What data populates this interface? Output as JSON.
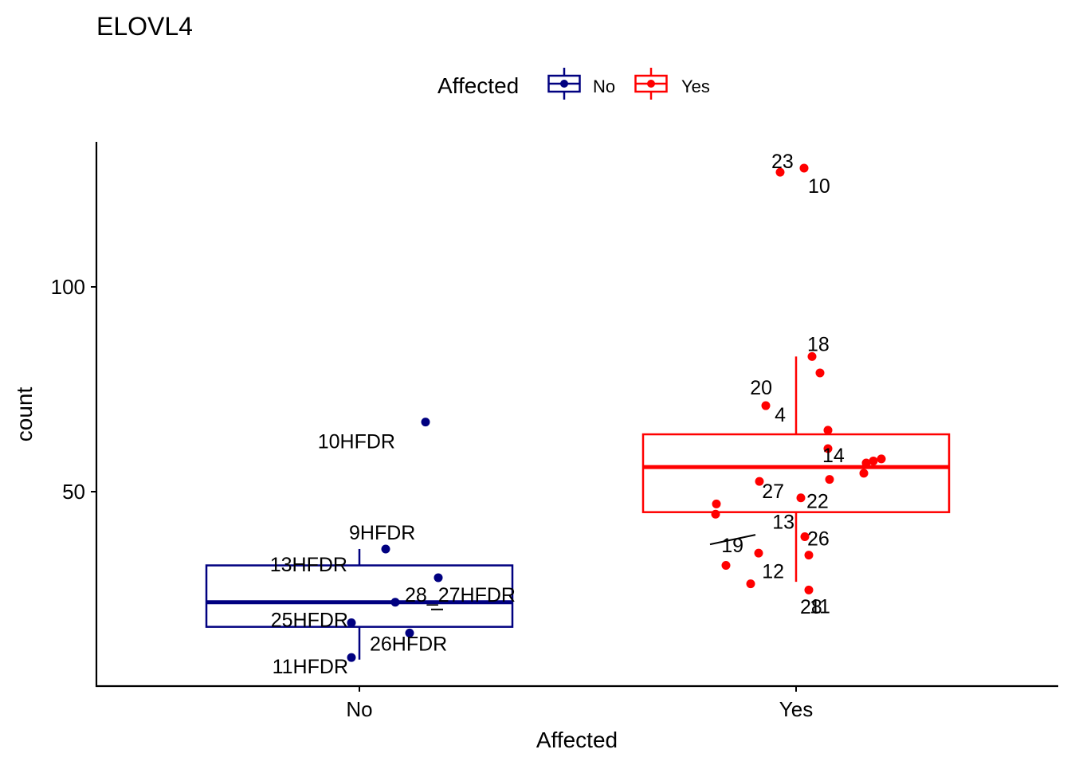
{
  "chart_data": {
    "type": "boxplot",
    "title": "ELOVL4",
    "xlabel": "Affected",
    "ylabel": "count",
    "categories": [
      "No",
      "Yes"
    ],
    "y_ticks": [
      50,
      100
    ],
    "ylim": [
      3,
      136
    ],
    "legend": {
      "title": "Affected",
      "position": "top",
      "entries": [
        {
          "label": "No",
          "color": "#000080"
        },
        {
          "label": "Yes",
          "color": "#FF0000"
        }
      ]
    },
    "grid": false,
    "boxes": [
      {
        "category": "No",
        "color": "#000080",
        "whisker_low": 9,
        "q1": 17,
        "median": 23,
        "q3": 32,
        "whisker_high": 36
      },
      {
        "category": "Yes",
        "color": "#FF0000",
        "whisker_low": 28,
        "q1": 45,
        "median": 56,
        "q3": 64,
        "whisker_high": 83
      }
    ],
    "series": [
      {
        "name": "No",
        "color": "#000080",
        "points": [
          {
            "label": "10HFDR",
            "y": 67
          },
          {
            "label": "9HFDR",
            "y": 36
          },
          {
            "label": "13HFDR",
            "y": 29
          },
          {
            "label": "28_27HFDR",
            "y": 23
          },
          {
            "label": "25HFDR",
            "y": 18
          },
          {
            "label": "26HFDR",
            "y": 15.5
          },
          {
            "label": "11HFDR",
            "y": 9.5
          }
        ]
      },
      {
        "name": "Yes",
        "color": "#FF0000",
        "points": [
          {
            "label": "23",
            "y": 128
          },
          {
            "label": "10",
            "y": 129
          },
          {
            "label": "18",
            "y": 83
          },
          {
            "label": "",
            "y": 79
          },
          {
            "label": "20",
            "y": 71
          },
          {
            "label": "4",
            "y": 65
          },
          {
            "label": "14",
            "y": 60.5
          },
          {
            "label": "",
            "y": 58
          },
          {
            "label": "",
            "y": 57.5
          },
          {
            "label": "",
            "y": 57
          },
          {
            "label": "",
            "y": 54.5
          },
          {
            "label": "",
            "y": 53
          },
          {
            "label": "27",
            "y": 52.5
          },
          {
            "label": "22",
            "y": 48.5
          },
          {
            "label": "",
            "y": 47
          },
          {
            "label": "",
            "y": 44.5
          },
          {
            "label": "13",
            "y": 39
          },
          {
            "label": "19",
            "y": 35
          },
          {
            "label": "26",
            "y": 34.5
          },
          {
            "label": "",
            "y": 32
          },
          {
            "label": "12",
            "y": 27.5
          },
          {
            "label": "11",
            "y": 26
          },
          {
            "label": "28",
            "y": 27
          }
        ]
      }
    ]
  }
}
